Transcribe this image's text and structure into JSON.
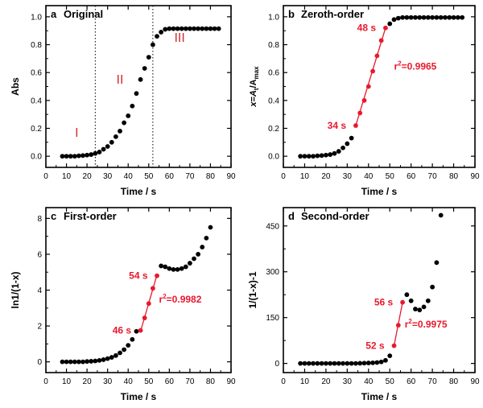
{
  "colors": {
    "black": "#000000",
    "red": "#e8192c",
    "roman": "#d32f2f"
  },
  "chart_data": [
    {
      "type": "scatter",
      "panel": "a",
      "title": "Original",
      "xlabel": "Time / s",
      "ylabel": "Abs",
      "xlim": [
        0,
        90
      ],
      "ylim": [
        -0.08,
        1.08
      ],
      "xticks": [
        0,
        10,
        20,
        30,
        40,
        50,
        60,
        70,
        80,
        90
      ],
      "yticks": [
        0.0,
        0.2,
        0.4,
        0.6,
        0.8,
        1.0
      ],
      "ytick_labels": [
        "0.0",
        "0.2",
        "0.4",
        "0.6",
        "0.8",
        "1.0"
      ],
      "series": [
        {
          "name": "Abs",
          "color": "#000000",
          "x": [
            8,
            10,
            12,
            14,
            16,
            18,
            20,
            22,
            24,
            26,
            28,
            30,
            32,
            34,
            36,
            38,
            40,
            42,
            44,
            46,
            48,
            50,
            52,
            54,
            56,
            58,
            60,
            62,
            64,
            66,
            68,
            70,
            72,
            74,
            76,
            78,
            80,
            82,
            84
          ],
          "y": [
            0.0,
            0.0,
            0.0,
            0.0,
            0.003,
            0.005,
            0.008,
            0.012,
            0.02,
            0.03,
            0.05,
            0.07,
            0.1,
            0.14,
            0.18,
            0.24,
            0.29,
            0.36,
            0.45,
            0.55,
            0.63,
            0.71,
            0.8,
            0.86,
            0.89,
            0.91,
            0.915,
            0.915,
            0.915,
            0.915,
            0.915,
            0.915,
            0.915,
            0.915,
            0.915,
            0.915,
            0.915,
            0.915,
            0.915
          ]
        }
      ],
      "vlines": [
        24,
        52
      ],
      "region_labels": [
        {
          "text": "I",
          "x": 15,
          "y": 0.14
        },
        {
          "text": "II",
          "x": 36,
          "y": 0.52
        },
        {
          "text": "III",
          "x": 65,
          "y": 0.82
        }
      ]
    },
    {
      "type": "scatter",
      "panel": "b",
      "title": "Zeroth-order",
      "xlabel": "Time / s",
      "ylabel": "x=At/Amax",
      "ylabel_parts": {
        "main": "x=A",
        "sub1": "t",
        "mid": "/A",
        "sub2": "max"
      },
      "xlim": [
        0,
        90
      ],
      "ylim": [
        -0.08,
        1.08
      ],
      "xticks": [
        0,
        10,
        20,
        30,
        40,
        50,
        60,
        70,
        80,
        90
      ],
      "yticks": [
        0.0,
        0.2,
        0.4,
        0.6,
        0.8,
        1.0
      ],
      "ytick_labels": [
        "0.0",
        "0.2",
        "0.4",
        "0.6",
        "0.8",
        "1.0"
      ],
      "series": [
        {
          "name": "data",
          "color": "#000000",
          "x": [
            8,
            10,
            12,
            14,
            16,
            18,
            20,
            22,
            24,
            26,
            28,
            30,
            32,
            50,
            52,
            54,
            56,
            58,
            60,
            62,
            64,
            66,
            68,
            70,
            72,
            74,
            76,
            78,
            80,
            82,
            84
          ],
          "y": [
            0.0,
            0.0,
            0.0,
            0.0,
            0.003,
            0.005,
            0.008,
            0.012,
            0.02,
            0.035,
            0.06,
            0.09,
            0.13,
            0.95,
            0.98,
            0.99,
            0.995,
            0.995,
            0.995,
            0.995,
            0.995,
            0.995,
            0.995,
            0.995,
            0.995,
            0.995,
            0.995,
            0.995,
            0.995,
            0.995,
            0.995
          ]
        },
        {
          "name": "fit",
          "color": "#e8192c",
          "x": [
            34,
            36,
            38,
            40,
            42,
            44,
            46,
            48
          ],
          "y": [
            0.22,
            0.31,
            0.4,
            0.5,
            0.61,
            0.72,
            0.83,
            0.92
          ]
        }
      ],
      "fit_line": {
        "x": [
          34,
          48
        ],
        "y": [
          0.22,
          0.92
        ]
      },
      "annotations": [
        {
          "text": "48 s",
          "x": 43.5,
          "y": 0.92
        },
        {
          "text": "34 s",
          "x": 29.5,
          "y": 0.22
        }
      ],
      "r2": {
        "label": "r",
        "sup": "2",
        "value": "=0.9965",
        "x": 52,
        "y": 0.62
      }
    },
    {
      "type": "scatter",
      "panel": "c",
      "title": "First-order",
      "xlabel": "Time / s",
      "ylabel": "ln1/(1-x)",
      "xlim": [
        0,
        90
      ],
      "ylim": [
        -0.6,
        8.6
      ],
      "xticks": [
        0,
        10,
        20,
        30,
        40,
        50,
        60,
        70,
        80,
        90
      ],
      "yticks": [
        0,
        2,
        4,
        6,
        8
      ],
      "ytick_labels": [
        "0",
        "2",
        "4",
        "6",
        "8"
      ],
      "series": [
        {
          "name": "data",
          "color": "#000000",
          "x": [
            8,
            10,
            12,
            14,
            16,
            18,
            20,
            22,
            24,
            26,
            28,
            30,
            32,
            34,
            36,
            38,
            40,
            42,
            44,
            56,
            58,
            60,
            62,
            64,
            66,
            68,
            70,
            72,
            74,
            76,
            78,
            80
          ],
          "y": [
            0.0,
            0.0,
            0.0,
            0.0,
            0.0,
            0.0,
            0.02,
            0.03,
            0.05,
            0.08,
            0.12,
            0.18,
            0.25,
            0.35,
            0.5,
            0.68,
            0.92,
            1.25,
            1.7,
            5.35,
            5.3,
            5.2,
            5.15,
            5.15,
            5.2,
            5.3,
            5.5,
            5.75,
            6.0,
            6.4,
            6.9,
            7.5
          ]
        },
        {
          "name": "fit",
          "color": "#e8192c",
          "x": [
            46,
            48,
            50,
            52,
            54
          ],
          "y": [
            1.75,
            2.45,
            3.25,
            4.1,
            4.8
          ]
        }
      ],
      "fit_line": {
        "x": [
          46,
          54
        ],
        "y": [
          1.7,
          4.85
        ]
      },
      "annotations": [
        {
          "text": "54 s",
          "x": 49.5,
          "y": 4.8
        },
        {
          "text": "46 s",
          "x": 41.5,
          "y": 1.75
        }
      ],
      "r2": {
        "label": "r",
        "sup": "2",
        "value": "=0.9982",
        "x": 55,
        "y": 3.3
      }
    },
    {
      "type": "scatter",
      "panel": "d",
      "title": "Second-order",
      "xlabel": "Time / s",
      "ylabel": "1/(1-x)-1",
      "xlim": [
        0,
        90
      ],
      "ylim": [
        -30,
        510
      ],
      "xticks": [
        0,
        10,
        20,
        30,
        40,
        50,
        60,
        70,
        80,
        90
      ],
      "yticks": [
        0,
        150,
        300,
        450
      ],
      "ytick_labels": [
        "0",
        "150",
        "300",
        "450"
      ],
      "series": [
        {
          "name": "data",
          "color": "#000000",
          "x": [
            8,
            10,
            12,
            14,
            16,
            18,
            20,
            22,
            24,
            26,
            28,
            30,
            32,
            34,
            36,
            38,
            40,
            42,
            44,
            46,
            48,
            50,
            58,
            60,
            62,
            64,
            66,
            68,
            70,
            72,
            74
          ],
          "y": [
            0,
            0,
            0,
            0,
            0,
            0,
            0,
            0,
            0,
            0,
            0,
            0,
            0,
            0,
            0.5,
            1,
            1.5,
            2,
            3,
            5,
            10,
            25,
            225,
            205,
            178,
            175,
            185,
            205,
            250,
            330,
            485
          ]
        },
        {
          "name": "fit",
          "color": "#e8192c",
          "x": [
            52,
            54,
            56
          ],
          "y": [
            58,
            125,
            200
          ]
        }
      ],
      "fit_line": {
        "x": [
          52,
          56
        ],
        "y": [
          58,
          200
        ]
      },
      "annotations": [
        {
          "text": "56 s",
          "x": 51.5,
          "y": 200
        },
        {
          "text": "52 s",
          "x": 47.5,
          "y": 58
        }
      ],
      "r2": {
        "label": "r",
        "sup": "2",
        "value": "=0.9975",
        "x": 57,
        "y": 118
      }
    }
  ]
}
